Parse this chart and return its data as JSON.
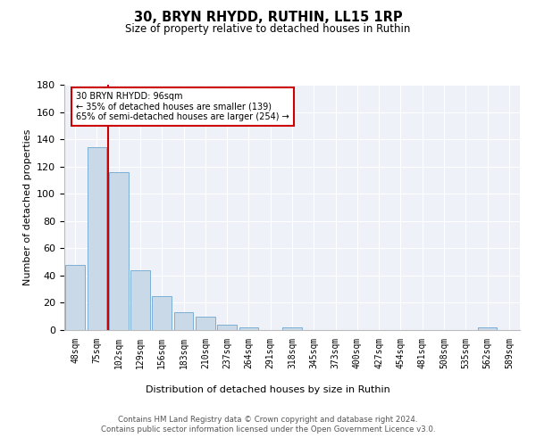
{
  "title": "30, BRYN RHYDD, RUTHIN, LL15 1RP",
  "subtitle": "Size of property relative to detached houses in Ruthin",
  "xlabel": "Distribution of detached houses by size in Ruthin",
  "ylabel": "Number of detached properties",
  "bar_labels": [
    "48sqm",
    "75sqm",
    "102sqm",
    "129sqm",
    "156sqm",
    "183sqm",
    "210sqm",
    "237sqm",
    "264sqm",
    "291sqm",
    "318sqm",
    "345sqm",
    "373sqm",
    "400sqm",
    "427sqm",
    "454sqm",
    "481sqm",
    "508sqm",
    "535sqm",
    "562sqm",
    "589sqm"
  ],
  "bar_values": [
    48,
    134,
    116,
    44,
    25,
    13,
    10,
    4,
    2,
    0,
    2,
    0,
    0,
    0,
    0,
    0,
    0,
    0,
    0,
    2,
    0
  ],
  "bar_color": "#c9d9e8",
  "bar_edge_color": "#7bafd4",
  "annotation_title": "30 BRYN RHYDD: 96sqm",
  "annotation_line1": "← 35% of detached houses are smaller (139)",
  "annotation_line2": "65% of semi-detached houses are larger (254) →",
  "annotation_box_color": "#ffffff",
  "annotation_box_edge_color": "#cc0000",
  "red_line_color": "#cc0000",
  "ylim": [
    0,
    180
  ],
  "yticks": [
    0,
    20,
    40,
    60,
    80,
    100,
    120,
    140,
    160,
    180
  ],
  "background_color": "#eef2f8",
  "footer_line1": "Contains HM Land Registry data © Crown copyright and database right 2024.",
  "footer_line2": "Contains public sector information licensed under the Open Government Licence v3.0."
}
